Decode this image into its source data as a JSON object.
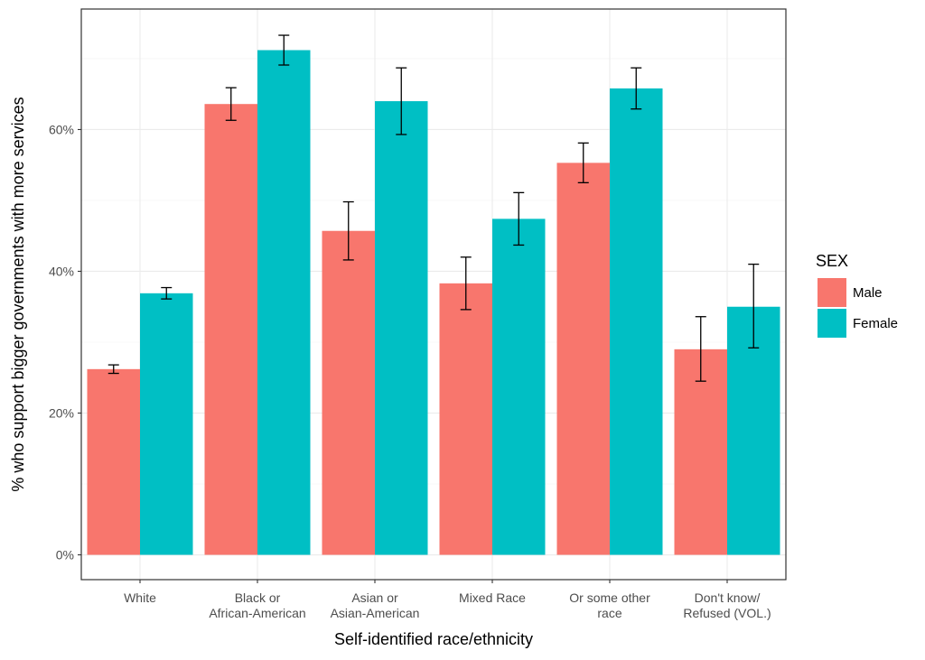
{
  "chart_data": {
    "type": "bar",
    "xlabel": "Self-identified race/ethnicity",
    "ylabel": "% who support bigger governments with more services",
    "categories": [
      [
        "White"
      ],
      [
        "Black or",
        "African-American"
      ],
      [
        "Asian or",
        "Asian-American"
      ],
      [
        "Mixed Race"
      ],
      [
        "Or some other",
        "race"
      ],
      [
        "Don't know/",
        "Refused (VOL.)"
      ]
    ],
    "series": [
      {
        "name": "Male",
        "color": "#F8766D",
        "values": [
          26.2,
          63.6,
          45.7,
          38.3,
          55.3,
          29.0
        ],
        "error_low": [
          25.6,
          61.3,
          41.6,
          34.6,
          52.5,
          24.5
        ],
        "error_high": [
          26.8,
          65.9,
          49.8,
          42.0,
          58.1,
          33.6
        ]
      },
      {
        "name": "Female",
        "color": "#00BFC4",
        "values": [
          36.9,
          71.2,
          64.0,
          47.4,
          65.8,
          35.0
        ],
        "error_low": [
          36.1,
          69.1,
          59.3,
          43.7,
          62.9,
          29.2
        ],
        "error_high": [
          37.7,
          73.3,
          68.7,
          51.1,
          68.7,
          41.0
        ]
      }
    ],
    "yticks": [
      0,
      20,
      40,
      60
    ],
    "ytick_labels": [
      "0%",
      "20%",
      "40%",
      "60%"
    ],
    "ylim": [
      -3.5,
      77
    ],
    "grid": true,
    "legend": {
      "title": "SEX",
      "position": "right"
    }
  }
}
